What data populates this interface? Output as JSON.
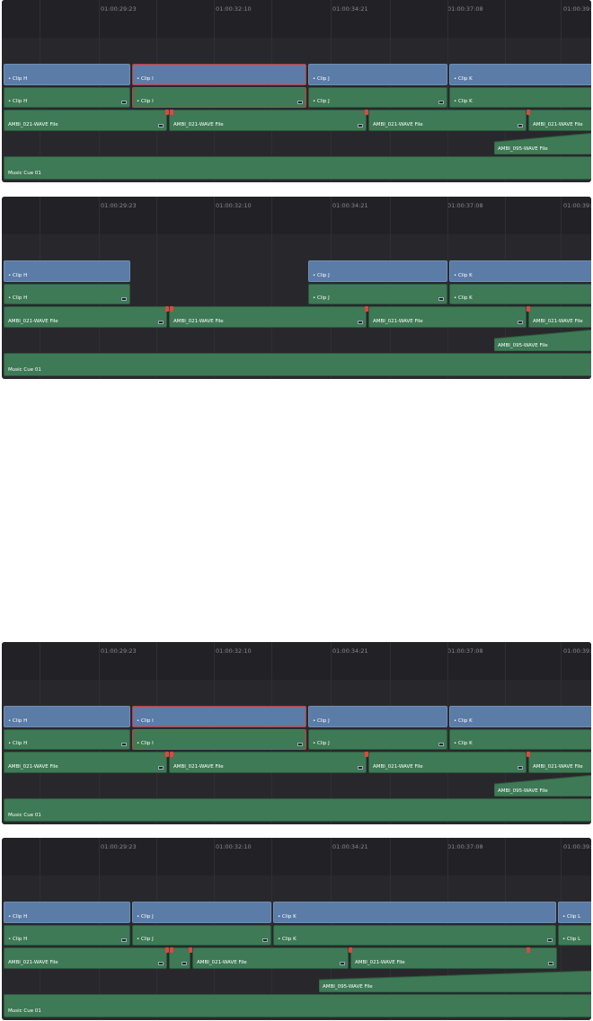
{
  "ruler": [
    "01:00:29:23",
    "01:00:32:10",
    "01:00:34:21",
    "01:00:37:08",
    "01:00:39:1"
  ],
  "panels": [
    {
      "clips": [
        "Clip H",
        "Clip I",
        "Clip J",
        "Clip K",
        "Clip H",
        "Clip I",
        "Clip J",
        "Clip K",
        "AMBI_021-WAVE File",
        "AMBI_021-WAVE File",
        "AMBI_021-WAVE File",
        "AMBI_021-WAVE File",
        "AMBI_095-WAVE File",
        "Music Cue 01"
      ]
    },
    {
      "clips": [
        "Clip H",
        "Clip J",
        "Clip K",
        "Clip H",
        "Clip J",
        "Clip K",
        "AMBI_021-WAVE File",
        "AMBI_021-WAVE File",
        "AMBI_021-WAVE File",
        "AMBI_021-WAVE File",
        "AMBI_095-WAVE File",
        "Music Cue 01"
      ]
    },
    {
      "clips": [
        "Clip H",
        "Clip I",
        "Clip J",
        "Clip K",
        "Clip H",
        "Clip I",
        "Clip J",
        "Clip K",
        "AMBI_021-WAVE File",
        "AMBI_021-WAVE File",
        "AMBI_021-WAVE File",
        "AMBI_021-WAVE File",
        "AMBI_095-WAVE File",
        "Music Cue 01"
      ]
    },
    {
      "clips": [
        "Clip H",
        "Clip J",
        "Clip K",
        "Clip L",
        "Clip H",
        "Clip J",
        "Clip K",
        "Clip L",
        "AMBI_021-WAVE File",
        "AMBI_021-WAVE File",
        "AMBI_021-WAVE File",
        "AMBI_095-WAVE File",
        "Music Cue 01"
      ]
    }
  ]
}
